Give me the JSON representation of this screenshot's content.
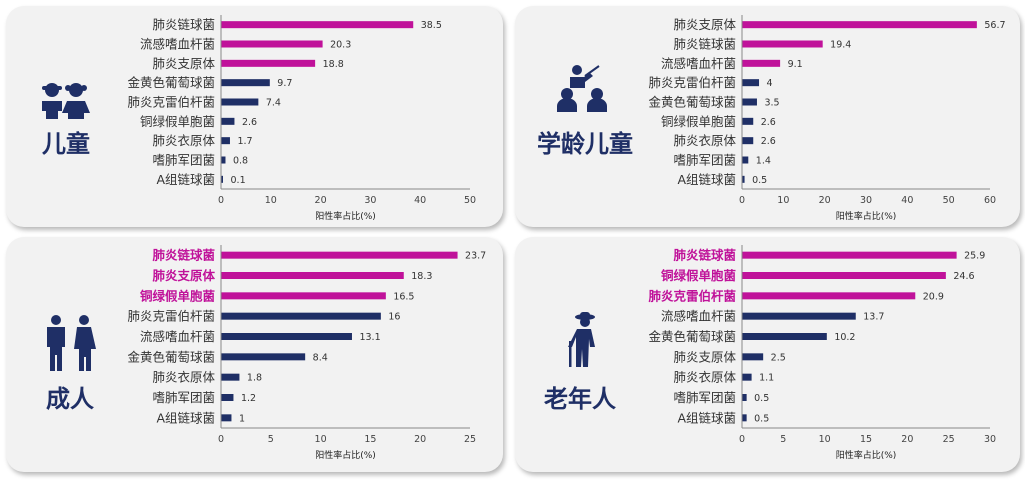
{
  "colors": {
    "highlight": "#c0129a",
    "normal": "#1f2f66",
    "label_normal": "#333333",
    "group_label": "#1f2f66"
  },
  "chart_data": [
    {
      "type": "bar",
      "group_label": "儿童",
      "icon": "children-icon",
      "categories": [
        "肺炎链球菌",
        "流感嗜血杆菌",
        "肺炎支原体",
        "金黄色葡萄球菌",
        "肺炎克雷伯杆菌",
        "铜绿假单胞菌",
        "肺炎衣原体",
        "嗜肺军团菌",
        "A组链球菌"
      ],
      "values": [
        38.5,
        20.3,
        18.8,
        9.7,
        7.4,
        2.6,
        1.7,
        0.8,
        0.1
      ],
      "value_labels": [
        "38.5",
        "20.3",
        "18.8",
        "9.7",
        "7.4",
        "2.6",
        "1.7",
        "0.8",
        "0.1"
      ],
      "highlight": [
        true,
        true,
        true,
        false,
        false,
        false,
        false,
        false,
        false
      ],
      "highlight_labels": [
        false,
        false,
        false,
        false,
        false,
        false,
        false,
        false,
        false
      ],
      "xlabel": "阳性率占比(%)",
      "xlim": [
        0,
        50
      ],
      "xticks": [
        0,
        10,
        20,
        30,
        40,
        50
      ]
    },
    {
      "type": "bar",
      "group_label": "学龄儿童",
      "icon": "teacher-students-icon",
      "categories": [
        "肺炎支原体",
        "肺炎链球菌",
        "流感嗜血杆菌",
        "肺炎克雷伯杆菌",
        "金黄色葡萄球菌",
        "铜绿假单胞菌",
        "肺炎衣原体",
        "嗜肺军团菌",
        "A组链球菌"
      ],
      "values": [
        56.7,
        19.4,
        9.1,
        4,
        3.5,
        2.6,
        2.6,
        1.4,
        0.5
      ],
      "value_labels": [
        "56.7",
        "19.4",
        "9.1",
        "4",
        "3.5",
        "2.6",
        "2.6",
        "1.4",
        "0.5"
      ],
      "highlight": [
        true,
        true,
        true,
        false,
        false,
        false,
        false,
        false,
        false
      ],
      "highlight_labels": [
        false,
        false,
        false,
        false,
        false,
        false,
        false,
        false,
        false
      ],
      "xlabel": "阳性率占比(%)",
      "xlim": [
        0,
        60
      ],
      "xticks": [
        0,
        10,
        20,
        30,
        40,
        50,
        60
      ]
    },
    {
      "type": "bar",
      "group_label": "成人",
      "icon": "adults-icon",
      "categories": [
        "肺炎链球菌",
        "肺炎支原体",
        "铜绿假单胞菌",
        "肺炎克雷伯杆菌",
        "流感嗜血杆菌",
        "金黄色葡萄球菌",
        "肺炎衣原体",
        "嗜肺军团菌",
        "A组链球菌"
      ],
      "values": [
        23.7,
        18.3,
        16.5,
        16,
        13.1,
        8.4,
        1.8,
        1.2,
        1
      ],
      "value_labels": [
        "23.7",
        "18.3",
        "16.5",
        "16",
        "13.1",
        "8.4",
        "1.8",
        "1.2",
        "1"
      ],
      "highlight": [
        true,
        true,
        true,
        false,
        false,
        false,
        false,
        false,
        false
      ],
      "highlight_labels": [
        true,
        true,
        true,
        false,
        false,
        false,
        false,
        false,
        false
      ],
      "xlabel": "阳性率占比(%)",
      "xlim": [
        0,
        25
      ],
      "xticks": [
        0,
        5,
        10,
        15,
        20,
        25
      ]
    },
    {
      "type": "bar",
      "group_label": "老年人",
      "icon": "elderly-icon",
      "categories": [
        "肺炎链球菌",
        "铜绿假单胞菌",
        "肺炎克雷伯杆菌",
        "流感嗜血杆菌",
        "金黄色葡萄球菌",
        "肺炎支原体",
        "肺炎衣原体",
        "嗜肺军团菌",
        "A组链球菌"
      ],
      "values": [
        25.9,
        24.6,
        20.9,
        13.7,
        10.2,
        2.5,
        1.1,
        0.5,
        0.5
      ],
      "value_labels": [
        "25.9",
        "24.6",
        "20.9",
        "13.7",
        "10.2",
        "2.5",
        "1.1",
        "0.5",
        "0.5"
      ],
      "highlight": [
        true,
        true,
        true,
        false,
        false,
        false,
        false,
        false,
        false
      ],
      "highlight_labels": [
        true,
        true,
        true,
        false,
        false,
        false,
        false,
        false,
        false
      ],
      "xlabel": "阳性率占比(%)",
      "xlim": [
        0,
        30
      ],
      "xticks": [
        0,
        5,
        10,
        15,
        20,
        25,
        30
      ]
    }
  ]
}
